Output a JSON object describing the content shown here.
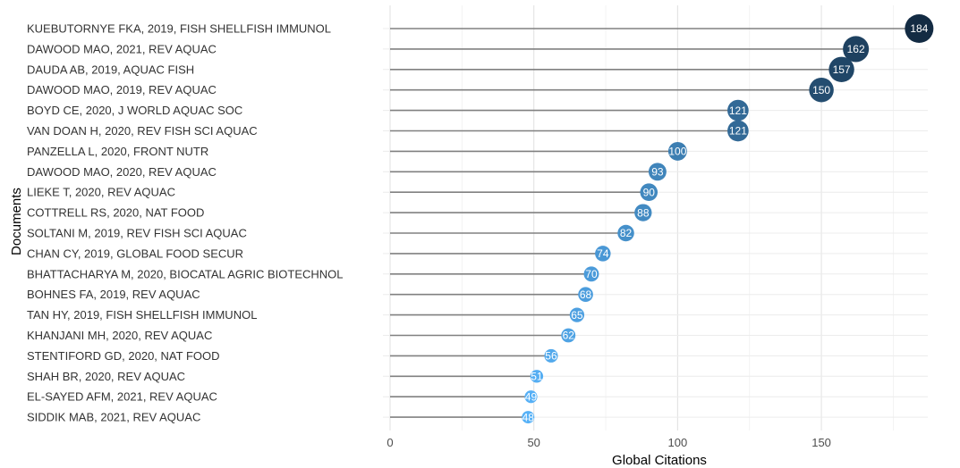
{
  "chart_data": {
    "type": "lollipop",
    "xlabel": "Global Citations",
    "ylabel": "Documents",
    "xlim": [
      0,
      187
    ],
    "xticks": [
      0,
      50,
      100,
      150
    ],
    "grid": true,
    "legend": "none",
    "color_scale": {
      "low": "#56b1f7",
      "high": "#132b43"
    },
    "stem_color": "#808080",
    "categories": [
      "KUEBUTORNYE FKA, 2019, FISH SHELLFISH IMMUNOL",
      "DAWOOD MAO, 2021, REV AQUAC",
      "DAUDA AB, 2019, AQUAC FISH",
      "DAWOOD MAO, 2019, REV AQUAC",
      "BOYD CE, 2020, J WORLD AQUAC SOC",
      "VAN DOAN H, 2020, REV FISH SCI AQUAC",
      "PANZELLA L, 2020, FRONT NUTR",
      "DAWOOD MAO, 2020, REV AQUAC",
      "LIEKE T, 2020, REV AQUAC",
      "COTTRELL RS, 2020, NAT FOOD",
      "SOLTANI M, 2019, REV FISH SCI AQUAC",
      "CHAN CY, 2019, GLOBAL FOOD SECUR",
      "BHATTACHARYA M, 2020, BIOCATAL AGRIC BIOTECHNOL",
      "BOHNES FA, 2019, REV AQUAC",
      "TAN HY, 2019, FISH SHELLFISH IMMUNOL",
      "KHANJANI MH, 2020, REV AQUAC",
      "STENTIFORD GD, 2020, NAT FOOD",
      "SHAH BR, 2020, REV AQUAC",
      "EL-SAYED AFM, 2021, REV AQUAC",
      "SIDDIK MAB, 2021, REV AQUAC"
    ],
    "values": [
      184,
      162,
      157,
      150,
      121,
      121,
      100,
      93,
      90,
      88,
      82,
      74,
      70,
      68,
      65,
      62,
      56,
      51,
      49,
      48
    ]
  }
}
